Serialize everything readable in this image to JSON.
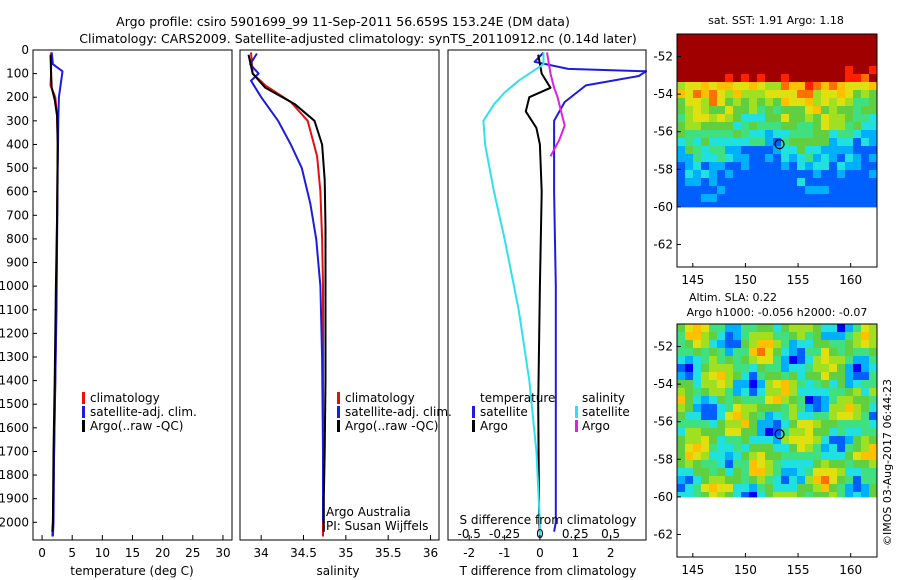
{
  "header": {
    "title_line1": "Argo profile: csiro 5901699_99 11-Sep-2011 56.659S 153.24E (DM data)",
    "title_line2": "Climatology: CARS2009. Satellite-adjusted climatology: synTS_20110912.nc (0.14d later)"
  },
  "colors": {
    "climatology": "#e3100f",
    "satellite": "#1c1ce0",
    "argo": "#000000",
    "sat_salinity": "#2fe0f0",
    "argo_salinity": "#e020e0"
  },
  "chart_data": [
    {
      "type": "line",
      "id": "temperature",
      "xlabel": "temperature (deg C)",
      "ylabel": "",
      "xlim": [
        -1.5,
        31.5
      ],
      "ylim": [
        2075,
        0
      ],
      "xticks": [
        0,
        5,
        10,
        15,
        20,
        25,
        30
      ],
      "yticks": [
        0,
        100,
        200,
        300,
        400,
        500,
        600,
        700,
        800,
        900,
        1000,
        1100,
        1200,
        1300,
        1400,
        1500,
        1600,
        1700,
        1800,
        1900,
        2000
      ],
      "legend": [
        "climatology",
        "satellite-adj. clim.",
        "Argo(..raw -QC)"
      ],
      "series": [
        {
          "name": "climatology",
          "color": "#e3100f",
          "points": [
            [
              1.5,
              10
            ],
            [
              1.5,
              100
            ],
            [
              1.4,
              150
            ],
            [
              2.2,
              200
            ],
            [
              2.5,
              280
            ],
            [
              2.6,
              400
            ],
            [
              2.5,
              700
            ],
            [
              2.4,
              1000
            ],
            [
              2.2,
              1400
            ],
            [
              2.0,
              1700
            ],
            [
              1.8,
              2000
            ],
            [
              1.7,
              2060
            ]
          ]
        },
        {
          "name": "satellite-adj. clim.",
          "color": "#1c1ce0",
          "points": [
            [
              1.6,
              10
            ],
            [
              1.8,
              60
            ],
            [
              3.4,
              90
            ],
            [
              2.8,
              200
            ],
            [
              2.7,
              300
            ],
            [
              2.6,
              500
            ],
            [
              2.5,
              800
            ],
            [
              2.4,
              1100
            ],
            [
              2.2,
              1400
            ],
            [
              2.0,
              1700
            ],
            [
              1.9,
              2000
            ],
            [
              1.8,
              2060
            ]
          ]
        },
        {
          "name": "Argo(..raw -QC)",
          "color": "#000000",
          "points": [
            [
              1.4,
              20
            ],
            [
              1.5,
              100
            ],
            [
              1.6,
              160
            ],
            [
              2.1,
              210
            ],
            [
              2.5,
              280
            ],
            [
              2.6,
              400
            ],
            [
              2.5,
              700
            ],
            [
              2.3,
              1000
            ],
            [
              2.1,
              1400
            ],
            [
              1.9,
              1700
            ],
            [
              1.8,
              2000
            ],
            [
              1.7,
              2040
            ]
          ]
        }
      ]
    },
    {
      "type": "line",
      "id": "salinity",
      "xlabel": "salinity",
      "ylabel": "",
      "xlim": [
        33.75,
        36.1
      ],
      "ylim": [
        2075,
        0
      ],
      "xticks": [
        34,
        34.5,
        35,
        35.5,
        36
      ],
      "legend": [
        "climatology",
        "satellite-adj. clim.",
        "Argo(..raw -QC)"
      ],
      "series": [
        {
          "name": "climatology",
          "color": "#e3100f",
          "points": [
            [
              33.88,
              10
            ],
            [
              33.9,
              100
            ],
            [
              34.05,
              150
            ],
            [
              34.35,
              220
            ],
            [
              34.55,
              300
            ],
            [
              34.66,
              450
            ],
            [
              34.7,
              600
            ],
            [
              34.72,
              800
            ],
            [
              34.73,
              1000
            ],
            [
              34.73,
              1400
            ],
            [
              34.73,
              1700
            ],
            [
              34.73,
              2060
            ]
          ]
        },
        {
          "name": "satellite-adj. clim.",
          "color": "#1c1ce0",
          "points": [
            [
              33.95,
              15
            ],
            [
              33.87,
              60
            ],
            [
              33.97,
              100
            ],
            [
              33.88,
              130
            ],
            [
              34.0,
              200
            ],
            [
              34.2,
              300
            ],
            [
              34.35,
              400
            ],
            [
              34.48,
              500
            ],
            [
              34.58,
              650
            ],
            [
              34.65,
              800
            ],
            [
              34.7,
              1000
            ],
            [
              34.72,
              1300
            ],
            [
              34.73,
              1700
            ],
            [
              34.73,
              2000
            ]
          ]
        },
        {
          "name": "Argo(..raw -QC)",
          "color": "#000000",
          "points": [
            [
              33.85,
              20
            ],
            [
              33.9,
              100
            ],
            [
              34.05,
              160
            ],
            [
              34.4,
              230
            ],
            [
              34.63,
              300
            ],
            [
              34.72,
              400
            ],
            [
              34.75,
              550
            ],
            [
              34.76,
              750
            ],
            [
              34.76,
              1000
            ],
            [
              34.76,
              1400
            ],
            [
              34.75,
              1700
            ],
            [
              34.74,
              1900
            ],
            [
              34.74,
              2040
            ]
          ]
        }
      ],
      "annotation_line1": "Argo Australia",
      "annotation_line2": "PI: Susan Wijffels"
    },
    {
      "type": "line",
      "id": "difference",
      "xlabel": "T difference from climatology",
      "xlabel_top": "S difference from climatology",
      "xlim": [
        -2.6,
        3.0
      ],
      "ylim": [
        2075,
        0
      ],
      "xticks": [
        -2,
        -1,
        0,
        1,
        2
      ],
      "xticks_top": [
        -0.5,
        -0.25,
        0,
        0.25,
        0.5
      ],
      "legend_left_title": "temperature",
      "legend_right_title": "salinity",
      "legend": [
        "satellite",
        "Argo",
        "satellite",
        "Argo"
      ],
      "series": [
        {
          "name": "temperature satellite",
          "color": "#1c1ce0",
          "points": [
            [
              0.1,
              10
            ],
            [
              -0.15,
              50
            ],
            [
              0.8,
              80
            ],
            [
              3.0,
              90
            ],
            [
              2.8,
              110
            ],
            [
              1.3,
              150
            ],
            [
              0.7,
              220
            ],
            [
              0.4,
              300
            ],
            [
              0.4,
              600
            ],
            [
              0.45,
              1000
            ],
            [
              0.45,
              1500
            ],
            [
              0.45,
              2000
            ],
            [
              0.4,
              2040
            ]
          ]
        },
        {
          "name": "temperature Argo",
          "color": "#000000",
          "points": [
            [
              -0.05,
              20
            ],
            [
              0.05,
              100
            ],
            [
              0.3,
              160
            ],
            [
              -0.3,
              200
            ],
            [
              -0.4,
              260
            ],
            [
              -0.1,
              330
            ],
            [
              0.0,
              400
            ],
            [
              0.05,
              600
            ],
            [
              0.0,
              1000
            ],
            [
              -0.05,
              1500
            ],
            [
              -0.02,
              2000
            ],
            [
              0.0,
              2040
            ]
          ]
        },
        {
          "name": "salinity satellite",
          "color": "#2fe0f0",
          "points": [
            [
              0.1,
              10
            ],
            [
              0.1,
              60
            ],
            [
              -0.6,
              130
            ],
            [
              -1.0,
              180
            ],
            [
              -1.3,
              230
            ],
            [
              -1.6,
              300
            ],
            [
              -1.55,
              400
            ],
            [
              -1.3,
              600
            ],
            [
              -1.0,
              800
            ],
            [
              -0.6,
              1100
            ],
            [
              -0.3,
              1400
            ],
            [
              -0.1,
              1700
            ],
            [
              0.0,
              2000
            ],
            [
              0.0,
              2060
            ]
          ]
        },
        {
          "name": "salinity Argo",
          "color": "#e020e0",
          "points": [
            [
              0.2,
              10
            ],
            [
              0.3,
              100
            ],
            [
              0.4,
              160
            ],
            [
              0.5,
              200
            ],
            [
              0.6,
              260
            ],
            [
              0.7,
              320
            ],
            [
              0.55,
              380
            ],
            [
              0.3,
              450
            ]
          ]
        }
      ]
    }
  ],
  "maps": {
    "sst": {
      "title": "sat. SST: 1.91 Argo: 1.18",
      "xticks": [
        145,
        150,
        155,
        160
      ],
      "yticks": [
        -52,
        -54,
        -56,
        -58,
        -60,
        -62
      ],
      "float_lon": 153.24,
      "float_lat": -56.659
    },
    "sla": {
      "title_line1": "Altim. SLA: 0.22",
      "title_line2": "Argo h1000: -0.056 h2000: -0.07",
      "xticks": [
        145,
        150,
        155,
        160
      ],
      "yticks": [
        -52,
        -54,
        -56,
        -58,
        -60,
        -62
      ],
      "float_lon": 153.24,
      "float_lat": -56.659
    },
    "stamp": "©IMOS 03-Aug-2017 06:44:23"
  }
}
